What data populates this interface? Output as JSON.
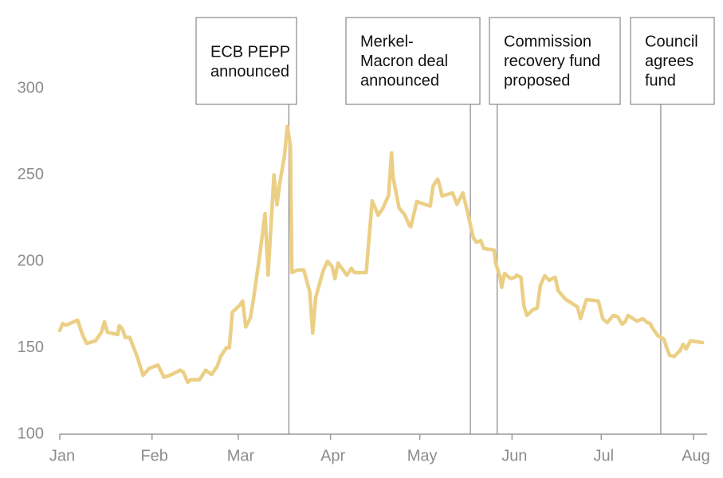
{
  "chart_data": {
    "type": "line",
    "xlim": [
      0,
      216
    ],
    "ylim": [
      100,
      300
    ],
    "xticks": [
      {
        "value": 0,
        "label": "Jan"
      },
      {
        "value": 31,
        "label": "Feb"
      },
      {
        "value": 60,
        "label": "Mar"
      },
      {
        "value": 91,
        "label": "Apr"
      },
      {
        "value": 121,
        "label": "May"
      },
      {
        "value": 152,
        "label": "Jun"
      },
      {
        "value": 182,
        "label": "Jul"
      },
      {
        "value": 213,
        "label": "Aug"
      }
    ],
    "yticks": [
      100,
      150,
      200,
      250,
      300
    ],
    "color": "#ebcf85",
    "x": [
      0,
      1,
      2,
      6,
      7.5,
      9,
      12,
      14,
      15,
      16,
      19.5,
      20,
      21,
      22,
      23.5,
      26,
      28,
      30,
      33,
      35,
      37,
      40.5,
      41.5,
      43,
      44,
      47,
      49,
      51,
      53,
      54,
      56,
      57,
      58,
      60.5,
      61.5,
      62.5,
      64,
      65,
      67,
      69,
      70,
      72,
      73,
      74,
      75.5,
      76.5,
      77.5,
      78,
      80,
      82,
      84,
      85,
      86,
      88.5,
      90,
      91.5,
      92.5,
      93.5,
      96.5,
      98,
      99,
      103,
      105,
      107,
      108.5,
      110.5,
      111.5,
      112,
      114,
      116,
      117.5,
      118,
      120,
      121.5,
      124.5,
      125.5,
      127,
      127.5,
      128.5,
      132,
      133.5,
      135.5,
      137,
      138,
      139,
      140,
      141.5,
      142.5,
      146,
      146.5,
      148,
      148.5,
      149.5,
      151.5,
      153,
      153.5,
      155,
      156,
      157,
      159,
      160.5,
      161.5,
      163,
      164.5,
      166.5,
      167.5,
      170,
      174,
      175,
      177,
      179.5,
      181,
      182.5,
      184,
      186,
      187.5,
      189,
      190,
      191,
      194,
      196,
      197.5,
      198.5,
      199,
      201,
      203,
      204,
      205,
      206.5,
      208.5,
      209.5,
      210.5,
      212,
      216
    ],
    "values": [
      160,
      164,
      163,
      166,
      158,
      152.5,
      154,
      159,
      165,
      159,
      157.6,
      162.7,
      161,
      156,
      156,
      145,
      134,
      138,
      140,
      133,
      134,
      137,
      136,
      130,
      131.5,
      131.5,
      137,
      134.5,
      139.5,
      144.7,
      150,
      150,
      170.5,
      174.7,
      177,
      162,
      167,
      177,
      201,
      227.6,
      192,
      250,
      232.7,
      246,
      260.8,
      278,
      266.8,
      193.5,
      195,
      195,
      182.5,
      158.5,
      179,
      194.5,
      200,
      197,
      190,
      199,
      192,
      196,
      193.5,
      193.5,
      235,
      226.7,
      230.4,
      238,
      262.7,
      249,
      231,
      226.7,
      220.7,
      220,
      234.6,
      233.6,
      232,
      243.7,
      247.5,
      245,
      237.8,
      239.6,
      233,
      239.6,
      229,
      221,
      213.8,
      211,
      212,
      207.4,
      206.5,
      199,
      190.8,
      185,
      193,
      190,
      190.8,
      192,
      190.8,
      174,
      168.7,
      172,
      173,
      186,
      191.7,
      189,
      190.8,
      183,
      178,
      173.7,
      166.8,
      177.9,
      177.4,
      177,
      166.8,
      164.5,
      168.7,
      168,
      163.6,
      165,
      168.7,
      165.4,
      166.8,
      164.5,
      164,
      162,
      157,
      155,
      150,
      145.6,
      145,
      148.4,
      152,
      149.3,
      154,
      153
    ],
    "annotations": [
      {
        "x": 77,
        "lines": [
          "ECB PEPP",
          "announced"
        ]
      },
      {
        "x": 138,
        "lines": [
          "Merkel-",
          "Macron deal",
          "announced"
        ]
      },
      {
        "x": 147,
        "lines": [
          "Commission",
          "recovery fund",
          "proposed"
        ]
      },
      {
        "x": 202,
        "lines": [
          "Council",
          "agrees",
          "fund"
        ]
      }
    ]
  }
}
